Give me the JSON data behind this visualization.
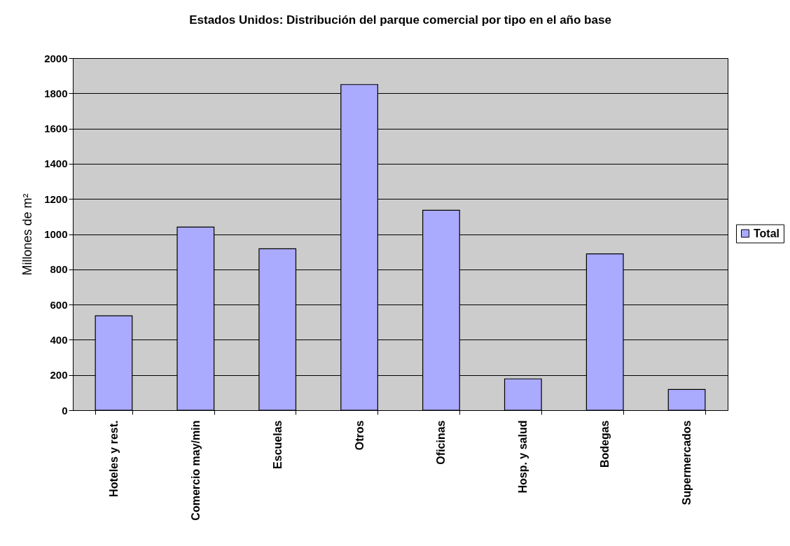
{
  "chart_data": {
    "type": "bar",
    "title": "Estados Unidos: Distribución del parque comercial por tipo en el año base",
    "ylabel": "Millones de m²",
    "categories": [
      "Hoteles y rest.",
      "Comercio may/min",
      "Escuelas",
      "Otros",
      "Oficinas",
      "Hosp. y salud",
      "Bodegas",
      "Supermercados"
    ],
    "series": [
      {
        "name": "Total",
        "color": "#aaaaff",
        "values": [
          536,
          1040,
          917,
          1850,
          1136,
          178,
          888,
          118
        ]
      }
    ],
    "ylim": [
      0,
      2000
    ],
    "yticks": [
      0,
      200,
      400,
      600,
      800,
      1000,
      1200,
      1400,
      1600,
      1800,
      2000
    ],
    "grid": "y",
    "legend": "right"
  }
}
